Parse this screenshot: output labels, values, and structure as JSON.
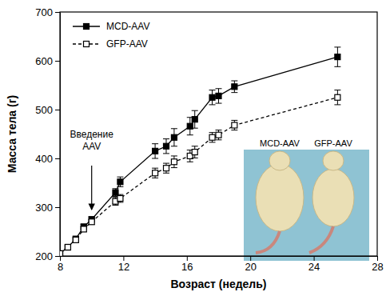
{
  "chart_data": {
    "type": "line",
    "x_label": "Возраст (недель)",
    "y_label": "Масса тела (г)",
    "x": [
      8.0,
      8.5,
      9.0,
      9.5,
      10.0,
      11.5,
      11.8,
      14.0,
      14.7,
      15.2,
      16.2,
      16.5,
      17.6,
      18.0,
      19.0,
      25.5
    ],
    "series": [
      {
        "name": "MCD-AAV",
        "color": "#000000",
        "marker": "square",
        "line_style": "solid",
        "values": [
          205,
          218,
          235,
          260,
          275,
          330,
          352,
          415,
          425,
          443,
          466,
          480,
          525,
          528,
          547,
          608
        ],
        "errors": [
          3,
          3,
          4,
          5,
          5,
          8,
          10,
          15,
          15,
          18,
          18,
          18,
          15,
          15,
          12,
          20
        ]
      },
      {
        "name": "GFP-AAV",
        "color": "#000000",
        "marker": "square-open",
        "line_style": "dashed",
        "values": [
          205,
          218,
          233,
          255,
          270,
          312,
          318,
          370,
          380,
          393,
          405,
          413,
          443,
          448,
          468,
          525
        ],
        "errors": [
          3,
          3,
          4,
          5,
          5,
          8,
          8,
          10,
          10,
          12,
          12,
          12,
          10,
          10,
          10,
          15
        ]
      }
    ],
    "xlim": [
      8,
      28
    ],
    "xticks": [
      8,
      12,
      16,
      20,
      24,
      28
    ],
    "ylim": [
      200,
      700
    ],
    "yticks": [
      200,
      300,
      400,
      500,
      600,
      700
    ],
    "legend": "upper left",
    "grid": false,
    "annotations": [
      {
        "text": "Введение AAV",
        "x": 10,
        "y": 295
      },
      {
        "text": "MCD-AAV"
      },
      {
        "text": "GFP-AAV"
      }
    ]
  }
}
